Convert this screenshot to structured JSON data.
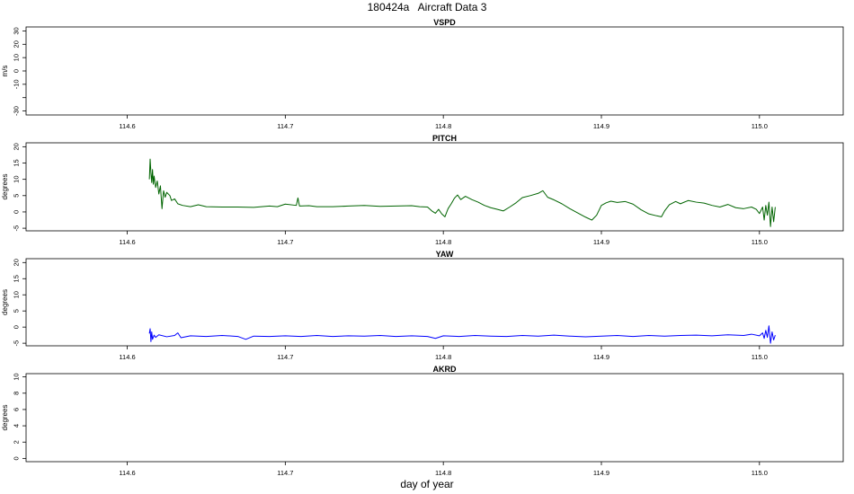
{
  "figure": {
    "title": "180424a   Aircraft Data 3",
    "xlabel": "day of year"
  },
  "chart_data": [
    {
      "type": "line",
      "title": "VSPD",
      "ylabel": "m/s",
      "xlim": [
        114.536,
        115.053
      ],
      "ylim": [
        -33,
        33
      ],
      "xticks": [
        114.6,
        114.7,
        114.8,
        114.9,
        115.0
      ],
      "xticklabels": [
        "114.6",
        "114.7",
        "114.8",
        "114.9",
        "115.0"
      ],
      "yticks": [
        -30,
        -20,
        -10,
        0,
        10,
        20,
        30
      ],
      "yticklabels": [
        "-30",
        "",
        "-10",
        "0",
        "10",
        "20",
        "30"
      ],
      "series": [
        {
          "color": "#000000",
          "points": []
        }
      ]
    },
    {
      "type": "line",
      "title": "PITCH",
      "ylabel": "degrees",
      "xlim": [
        114.536,
        115.053
      ],
      "ylim": [
        -5.8,
        21.2
      ],
      "xticks": [
        114.6,
        114.7,
        114.8,
        114.9,
        115.0
      ],
      "xticklabels": [
        "114.6",
        "114.7",
        "114.8",
        "114.9",
        "115.0"
      ],
      "yticks": [
        -5,
        0,
        5,
        10,
        15,
        20
      ],
      "yticklabels": [
        "-5",
        "0",
        "5",
        "10",
        "15",
        "20"
      ],
      "series": [
        {
          "color": "#006400",
          "points": [
            [
              114.614,
              10
            ],
            [
              114.6145,
              16.2
            ],
            [
              114.615,
              12
            ],
            [
              114.6155,
              9
            ],
            [
              114.616,
              13
            ],
            [
              114.6165,
              8.5
            ],
            [
              114.617,
              11
            ],
            [
              114.618,
              7.5
            ],
            [
              114.619,
              9.5
            ],
            [
              114.62,
              5.5
            ],
            [
              114.621,
              8
            ],
            [
              114.622,
              1
            ],
            [
              114.623,
              6.5
            ],
            [
              114.624,
              4.5
            ],
            [
              114.625,
              6
            ],
            [
              114.627,
              5
            ],
            [
              114.628,
              3.5
            ],
            [
              114.63,
              4
            ],
            [
              114.632,
              2.5
            ],
            [
              114.635,
              2
            ],
            [
              114.64,
              1.6
            ],
            [
              114.645,
              2.2
            ],
            [
              114.65,
              1.6
            ],
            [
              114.66,
              1.5
            ],
            [
              114.67,
              1.5
            ],
            [
              114.68,
              1.4
            ],
            [
              114.69,
              1.8
            ],
            [
              114.695,
              1.6
            ],
            [
              114.7,
              2.4
            ],
            [
              114.707,
              2
            ],
            [
              114.708,
              4.3
            ],
            [
              114.709,
              1.8
            ],
            [
              114.715,
              1.9
            ],
            [
              114.72,
              1.6
            ],
            [
              114.73,
              1.6
            ],
            [
              114.74,
              1.8
            ],
            [
              114.75,
              2.0
            ],
            [
              114.76,
              1.7
            ],
            [
              114.77,
              1.8
            ],
            [
              114.78,
              1.9
            ],
            [
              114.785,
              1.6
            ],
            [
              114.79,
              1.5
            ],
            [
              114.793,
              0.2
            ],
            [
              114.795,
              -0.4
            ],
            [
              114.797,
              0.8
            ],
            [
              114.799,
              -0.6
            ],
            [
              114.801,
              -1.5
            ],
            [
              114.803,
              1
            ],
            [
              114.805,
              2.5
            ],
            [
              114.807,
              4.2
            ],
            [
              114.809,
              5.2
            ],
            [
              114.811,
              3.8
            ],
            [
              114.814,
              4.8
            ],
            [
              114.818,
              3.8
            ],
            [
              114.822,
              3
            ],
            [
              114.826,
              2
            ],
            [
              114.83,
              1.3
            ],
            [
              114.834,
              0.8
            ],
            [
              114.838,
              0.3
            ],
            [
              114.842,
              1.5
            ],
            [
              114.846,
              2.8
            ],
            [
              114.85,
              4.4
            ],
            [
              114.855,
              5
            ],
            [
              114.86,
              5.7
            ],
            [
              114.863,
              6.5
            ],
            [
              114.866,
              4.5
            ],
            [
              114.87,
              3.7
            ],
            [
              114.875,
              2.5
            ],
            [
              114.88,
              1
            ],
            [
              114.885,
              -0.3
            ],
            [
              114.89,
              -1.6
            ],
            [
              114.894,
              -2.5
            ],
            [
              114.897,
              -1
            ],
            [
              114.9,
              2
            ],
            [
              114.903,
              2.8
            ],
            [
              114.906,
              3.3
            ],
            [
              114.91,
              2.9
            ],
            [
              114.915,
              3.2
            ],
            [
              114.92,
              2.4
            ],
            [
              114.925,
              0.7
            ],
            [
              114.93,
              -0.6
            ],
            [
              114.935,
              -1.2
            ],
            [
              114.938,
              -1.5
            ],
            [
              114.94,
              0.3
            ],
            [
              114.943,
              2.2
            ],
            [
              114.947,
              3.2
            ],
            [
              114.95,
              2.5
            ],
            [
              114.955,
              3.5
            ],
            [
              114.96,
              3.0
            ],
            [
              114.965,
              2.7
            ],
            [
              114.97,
              2.0
            ],
            [
              114.975,
              1.5
            ],
            [
              114.98,
              2.3
            ],
            [
              114.985,
              1.3
            ],
            [
              114.99,
              1.0
            ],
            [
              114.995,
              1.5
            ],
            [
              114.998,
              0.8
            ],
            [
              115.0,
              -0.5
            ],
            [
              115.002,
              1.5
            ],
            [
              115.003,
              -2.5
            ],
            [
              115.004,
              2
            ],
            [
              115.005,
              -1
            ],
            [
              115.006,
              3
            ],
            [
              115.007,
              -4.5
            ],
            [
              115.008,
              1.5
            ],
            [
              115.009,
              -3
            ],
            [
              115.01,
              1.5
            ]
          ]
        }
      ]
    },
    {
      "type": "line",
      "title": "YAW",
      "ylabel": "degrees",
      "xlim": [
        114.536,
        115.053
      ],
      "ylim": [
        -5.8,
        21.2
      ],
      "xticks": [
        114.6,
        114.7,
        114.8,
        114.9,
        115.0
      ],
      "xticklabels": [
        "114.6",
        "114.7",
        "114.8",
        "114.9",
        "115.0"
      ],
      "yticks": [
        -5,
        0,
        5,
        10,
        15,
        20
      ],
      "yticklabels": [
        "-5",
        "0",
        "5",
        "10",
        "15",
        "20"
      ],
      "series": [
        {
          "color": "#0000FF",
          "points": [
            [
              114.614,
              -2
            ],
            [
              114.6145,
              -0.5
            ],
            [
              114.615,
              -4.5
            ],
            [
              114.6155,
              -1.5
            ],
            [
              114.616,
              -3.8
            ],
            [
              114.617,
              -2.5
            ],
            [
              114.618,
              -3.2
            ],
            [
              114.62,
              -2.4
            ],
            [
              114.625,
              -3
            ],
            [
              114.63,
              -2.6
            ],
            [
              114.632,
              -1.8
            ],
            [
              114.634,
              -3.3
            ],
            [
              114.64,
              -2.7
            ],
            [
              114.65,
              -2.9
            ],
            [
              114.66,
              -2.6
            ],
            [
              114.67,
              -2.9
            ],
            [
              114.675,
              -3.8
            ],
            [
              114.68,
              -2.8
            ],
            [
              114.69,
              -2.9
            ],
            [
              114.7,
              -2.7
            ],
            [
              114.71,
              -2.9
            ],
            [
              114.72,
              -2.6
            ],
            [
              114.73,
              -2.9
            ],
            [
              114.74,
              -2.7
            ],
            [
              114.75,
              -2.8
            ],
            [
              114.76,
              -2.6
            ],
            [
              114.77,
              -2.9
            ],
            [
              114.78,
              -2.7
            ],
            [
              114.79,
              -2.9
            ],
            [
              114.795,
              -3.5
            ],
            [
              114.8,
              -2.7
            ],
            [
              114.81,
              -2.9
            ],
            [
              114.82,
              -2.6
            ],
            [
              114.83,
              -2.8
            ],
            [
              114.84,
              -2.9
            ],
            [
              114.85,
              -2.6
            ],
            [
              114.86,
              -2.8
            ],
            [
              114.87,
              -2.5
            ],
            [
              114.88,
              -2.8
            ],
            [
              114.89,
              -3.0
            ],
            [
              114.9,
              -2.8
            ],
            [
              114.91,
              -2.6
            ],
            [
              114.92,
              -2.9
            ],
            [
              114.93,
              -2.6
            ],
            [
              114.94,
              -2.8
            ],
            [
              114.95,
              -2.6
            ],
            [
              114.96,
              -2.5
            ],
            [
              114.97,
              -2.7
            ],
            [
              114.98,
              -2.4
            ],
            [
              114.99,
              -2.6
            ],
            [
              114.995,
              -2.2
            ],
            [
              115.0,
              -2.7
            ],
            [
              115.002,
              -1.8
            ],
            [
              115.003,
              -3.5
            ],
            [
              115.004,
              -1
            ],
            [
              115.005,
              -3.2
            ],
            [
              115.006,
              0.4
            ],
            [
              115.007,
              -5
            ],
            [
              115.008,
              -1.5
            ],
            [
              115.009,
              -4
            ],
            [
              115.01,
              -2.5
            ]
          ]
        }
      ]
    },
    {
      "type": "line",
      "title": "AKRD",
      "ylabel": "degrees",
      "xlim": [
        114.536,
        115.053
      ],
      "ylim": [
        -0.4,
        10.4
      ],
      "xticks": [
        114.6,
        114.7,
        114.8,
        114.9,
        115.0
      ],
      "xticklabels": [
        "114.6",
        "114.7",
        "114.8",
        "114.9",
        "115.0"
      ],
      "yticks": [
        0,
        2,
        4,
        6,
        8,
        10
      ],
      "yticklabels": [
        "0",
        "2",
        "4",
        "6",
        "8",
        "10"
      ],
      "series": [
        {
          "color": "#000000",
          "points": []
        }
      ]
    }
  ]
}
